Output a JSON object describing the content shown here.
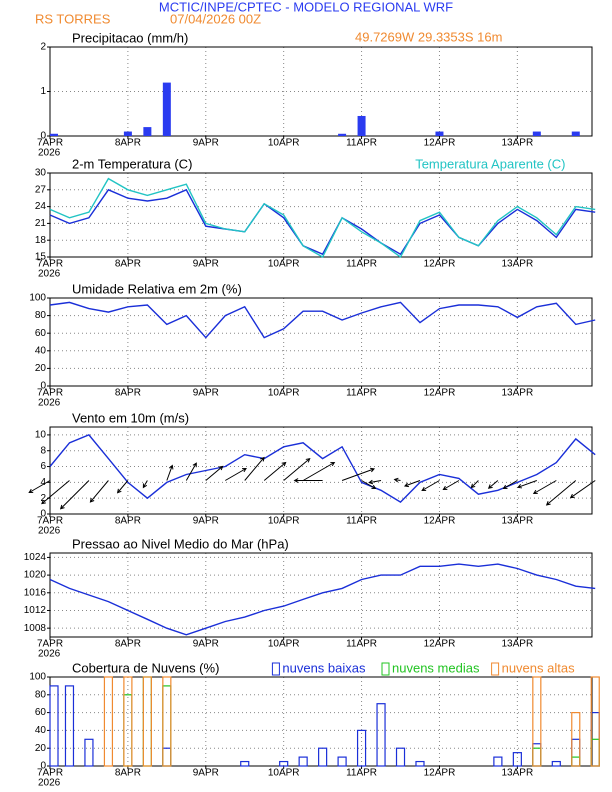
{
  "header": {
    "title": "MCTIC/INPE/CPTEC - MODELO REGIONAL WRF",
    "location": "RS TORRES",
    "date": "07/04/2026 00Z",
    "coords": "49.7269W 29.3353S 16m"
  },
  "chart_data": [
    {
      "type": "bar",
      "title": "Precipitacao (mm/h)",
      "color": "#2a3bf0",
      "xlabel": "2026",
      "x": [
        0,
        6,
        12,
        18,
        24,
        30,
        36,
        42,
        48,
        54,
        60,
        66,
        72,
        78,
        84,
        90,
        96,
        102,
        108,
        114,
        120,
        126,
        132,
        138,
        144,
        150,
        156,
        162,
        168
      ],
      "values": [
        0.05,
        0,
        0,
        0,
        0.1,
        0.2,
        1.2,
        0,
        0,
        0,
        0,
        0,
        0,
        0,
        0,
        0.05,
        0.45,
        0,
        0,
        0,
        0.1,
        0,
        0,
        0,
        0,
        0.1,
        0,
        0.1,
        0
      ],
      "xlim": [
        0,
        167
      ],
      "ylim": [
        0,
        2
      ],
      "yticks": [
        0,
        1,
        2
      ],
      "xticks": [
        {
          "value": 0,
          "label": "7APR"
        },
        {
          "value": 24,
          "label": "8APR"
        },
        {
          "value": 48,
          "label": "9APR"
        },
        {
          "value": 72,
          "label": "10APR"
        },
        {
          "value": 96,
          "label": "11APR"
        },
        {
          "value": 120,
          "label": "12APR"
        },
        {
          "value": 144,
          "label": "13APR"
        }
      ],
      "grid": true
    },
    {
      "type": "line",
      "title": "2-m Temperatura (C)",
      "xlabel": "2026",
      "legend": "top-right",
      "x": [
        0,
        6,
        12,
        18,
        24,
        30,
        36,
        42,
        48,
        54,
        60,
        66,
        72,
        78,
        84,
        90,
        96,
        102,
        108,
        114,
        120,
        126,
        132,
        138,
        144,
        150,
        156,
        162,
        168
      ],
      "series": [
        {
          "color": "#1a2fd8",
          "values": [
            22.5,
            21,
            22,
            27,
            25.5,
            25,
            25.5,
            27,
            20.5,
            20,
            19.5,
            24.5,
            22,
            17,
            15.5,
            22,
            20,
            17.5,
            15.5,
            21,
            22.5,
            18.5,
            17,
            21,
            23.5,
            21.5,
            18.5,
            23.5,
            23
          ]
        },
        {
          "name": "Temperatura Aparente (C)",
          "color": "#22c4c4",
          "values": [
            23.5,
            22,
            23,
            29,
            27,
            26,
            27,
            28,
            21,
            20,
            19.5,
            24.5,
            22.5,
            17,
            15,
            22,
            19.5,
            17.5,
            15,
            21.5,
            23,
            18.5,
            17,
            21.5,
            24,
            22,
            19,
            24,
            23.5
          ]
        }
      ],
      "xlim": [
        0,
        167
      ],
      "ylim": [
        15,
        30
      ],
      "yticks": [
        15,
        18,
        21,
        24,
        27,
        30
      ],
      "xticks": [
        {
          "value": 0,
          "label": "7APR"
        },
        {
          "value": 24,
          "label": "8APR"
        },
        {
          "value": 48,
          "label": "9APR"
        },
        {
          "value": 72,
          "label": "10APR"
        },
        {
          "value": 96,
          "label": "11APR"
        },
        {
          "value": 120,
          "label": "12APR"
        },
        {
          "value": 144,
          "label": "13APR"
        }
      ],
      "grid": true
    },
    {
      "type": "line",
      "title": "Umidade Relativa em 2m (%)",
      "xlabel": "2026",
      "x": [
        0,
        6,
        12,
        18,
        24,
        30,
        36,
        42,
        48,
        54,
        60,
        66,
        72,
        78,
        84,
        90,
        96,
        102,
        108,
        114,
        120,
        126,
        132,
        138,
        144,
        150,
        156,
        162,
        168
      ],
      "series": [
        {
          "color": "#1a2fd8",
          "values": [
            92,
            95,
            88,
            84,
            90,
            92,
            70,
            80,
            55,
            80,
            90,
            55,
            65,
            85,
            85,
            75,
            83,
            90,
            95,
            72,
            88,
            92,
            92,
            90,
            78,
            90,
            94,
            70,
            75
          ]
        }
      ],
      "xlim": [
        0,
        167
      ],
      "ylim": [
        0,
        100
      ],
      "yticks": [
        0,
        20,
        40,
        60,
        80,
        100
      ],
      "xticks": [
        {
          "value": 0,
          "label": "7APR"
        },
        {
          "value": 24,
          "label": "8APR"
        },
        {
          "value": 48,
          "label": "9APR"
        },
        {
          "value": 72,
          "label": "10APR"
        },
        {
          "value": 96,
          "label": "11APR"
        },
        {
          "value": 120,
          "label": "12APR"
        },
        {
          "value": 144,
          "label": "13APR"
        }
      ],
      "grid": true
    },
    {
      "type": "wind",
      "title": "Vento em 10m (m/s)",
      "xlabel": "2026",
      "x": [
        0,
        6,
        12,
        18,
        24,
        30,
        36,
        42,
        48,
        54,
        60,
        66,
        72,
        78,
        84,
        90,
        96,
        102,
        108,
        114,
        120,
        126,
        132,
        138,
        144,
        150,
        156,
        162,
        168
      ],
      "series": [
        {
          "color": "#1a2fd8",
          "values": [
            6,
            9,
            10,
            7,
            4,
            2,
            4,
            5,
            5.5,
            6,
            7.5,
            7,
            8.5,
            9,
            7,
            8.5,
            4,
            3,
            1.5,
            4,
            5,
            4.5,
            2.5,
            3,
            4,
            5,
            6.5,
            9.5,
            7.5
          ]
        }
      ],
      "direction": [
        60,
        50,
        45,
        40,
        40,
        30,
        200,
        210,
        230,
        240,
        220,
        230,
        230,
        240,
        90,
        250,
        300,
        80,
        100,
        70,
        60,
        60,
        45,
        50,
        60,
        70,
        60,
        50,
        55
      ],
      "xlim": [
        0,
        167
      ],
      "ylim": [
        0,
        11
      ],
      "yticks": [
        0,
        2,
        4,
        6,
        8,
        10
      ],
      "xticks": [
        {
          "value": 0,
          "label": "7APR"
        },
        {
          "value": 24,
          "label": "8APR"
        },
        {
          "value": 48,
          "label": "9APR"
        },
        {
          "value": 72,
          "label": "10APR"
        },
        {
          "value": 96,
          "label": "11APR"
        },
        {
          "value": 120,
          "label": "12APR"
        },
        {
          "value": 144,
          "label": "13APR"
        }
      ],
      "grid": true
    },
    {
      "type": "line",
      "title": "Pressao ao Nivel Medio do Mar (hPa)",
      "xlabel": "2026",
      "x": [
        0,
        6,
        12,
        18,
        24,
        30,
        36,
        42,
        48,
        54,
        60,
        66,
        72,
        78,
        84,
        90,
        96,
        102,
        108,
        114,
        120,
        126,
        132,
        138,
        144,
        150,
        156,
        162,
        168
      ],
      "series": [
        {
          "color": "#1a2fd8",
          "values": [
            1019,
            1017,
            1015.5,
            1014,
            1012,
            1010,
            1008,
            1006.5,
            1008,
            1009.5,
            1010.5,
            1012,
            1013,
            1014.5,
            1016,
            1017,
            1019,
            1020,
            1020,
            1022,
            1022,
            1022.5,
            1022,
            1022.5,
            1021.5,
            1020,
            1019,
            1017.5,
            1017
          ]
        }
      ],
      "xlim": [
        0,
        167
      ],
      "ylim": [
        1006,
        1025
      ],
      "yticks": [
        1008,
        1012,
        1016,
        1020,
        1024
      ],
      "xticks": [
        {
          "value": 0,
          "label": "7APR"
        },
        {
          "value": 24,
          "label": "8APR"
        },
        {
          "value": 48,
          "label": "9APR"
        },
        {
          "value": 72,
          "label": "10APR"
        },
        {
          "value": 96,
          "label": "11APR"
        },
        {
          "value": 120,
          "label": "12APR"
        },
        {
          "value": 144,
          "label": "13APR"
        }
      ],
      "grid": true
    },
    {
      "type": "bar",
      "title": "Cobertura de Nuvens (%)",
      "xlabel": "2026",
      "legend": "top-right",
      "bar_style": "outline",
      "x": [
        0,
        6,
        12,
        18,
        24,
        30,
        36,
        42,
        48,
        54,
        60,
        66,
        72,
        78,
        84,
        90,
        96,
        102,
        108,
        114,
        120,
        126,
        132,
        138,
        144,
        150,
        156,
        162,
        168
      ],
      "series": [
        {
          "name": "nuvens baixas",
          "color": "#1a2fd8",
          "values": [
            90,
            90,
            30,
            0,
            0,
            0,
            20,
            0,
            0,
            0,
            5,
            0,
            5,
            10,
            20,
            10,
            40,
            70,
            20,
            5,
            0,
            0,
            0,
            10,
            15,
            25,
            5,
            30,
            60
          ]
        },
        {
          "name": "nuvens medias",
          "color": "#22c422",
          "values": [
            0,
            0,
            0,
            0,
            80,
            100,
            90,
            0,
            0,
            0,
            0,
            0,
            0,
            0,
            0,
            0,
            0,
            0,
            0,
            0,
            0,
            0,
            0,
            0,
            0,
            20,
            0,
            10,
            30
          ]
        },
        {
          "name": "nuvens altas",
          "color": "#f08a30",
          "values": [
            0,
            0,
            0,
            100,
            100,
            100,
            100,
            0,
            0,
            0,
            0,
            0,
            0,
            0,
            0,
            0,
            0,
            0,
            0,
            0,
            0,
            0,
            0,
            0,
            0,
            100,
            0,
            60,
            100
          ]
        }
      ],
      "xlim": [
        0,
        167
      ],
      "ylim": [
        0,
        100
      ],
      "yticks": [
        0,
        20,
        40,
        60,
        80,
        100
      ],
      "xticks": [
        {
          "value": 0,
          "label": "7APR"
        },
        {
          "value": 24,
          "label": "8APR"
        },
        {
          "value": 48,
          "label": "9APR"
        },
        {
          "value": 72,
          "label": "10APR"
        },
        {
          "value": 96,
          "label": "11APR"
        },
        {
          "value": 120,
          "label": "12APR"
        },
        {
          "value": 144,
          "label": "13APR"
        }
      ],
      "grid": true
    }
  ]
}
